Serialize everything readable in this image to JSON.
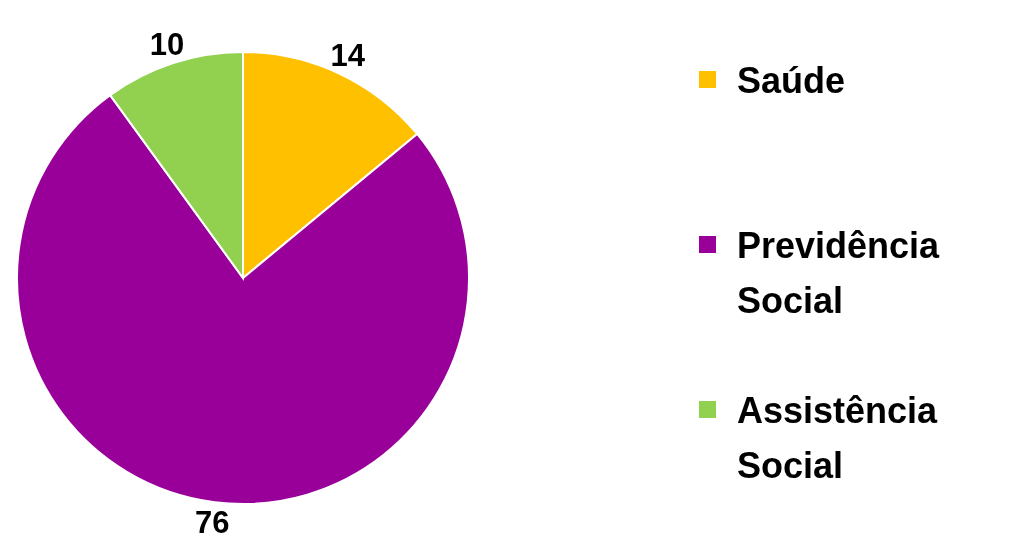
{
  "chart_data": {
    "type": "pie",
    "categories": [
      "Saúde",
      "Previdência Social",
      "Assistência Social"
    ],
    "values": [
      14,
      76,
      10
    ],
    "colors": [
      "#ffc000",
      "#990099",
      "#92d050"
    ],
    "data_labels": true,
    "legend": "right"
  }
}
